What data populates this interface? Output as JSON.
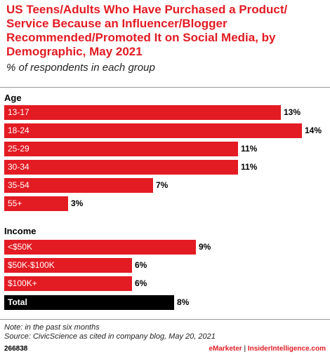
{
  "title": "US Teens/Adults Who Have Purchased a Product/ Service Because an Influencer/Blogger Recommended/Promoted It on Social Media, by Demographic, May 2021",
  "subtitle": "% of respondents in each group",
  "sections": {
    "age": "Age",
    "income": "Income"
  },
  "colors": {
    "bar": "#e31b23",
    "total_bar": "#000000",
    "title": "#e31b23"
  },
  "chart_data": {
    "type": "bar",
    "orientation": "horizontal",
    "unit": "%",
    "xlim": [
      0,
      14
    ],
    "groups": [
      {
        "name": "Age",
        "categories": [
          "13-17",
          "18-24",
          "25-29",
          "30-34",
          "35-54",
          "55+"
        ],
        "values": [
          13,
          14,
          11,
          11,
          7,
          3
        ],
        "labels": [
          "13%",
          "14%",
          "11%",
          "11%",
          "7%",
          "3%"
        ]
      },
      {
        "name": "Income",
        "categories": [
          "<$50K",
          "$50K-$100K",
          "$100K+"
        ],
        "values": [
          9,
          6,
          6
        ],
        "labels": [
          "9%",
          "6%",
          "6%"
        ]
      }
    ],
    "total": {
      "category": "Total",
      "value": 8,
      "label": "8%"
    }
  },
  "notes": {
    "note": "Note: in the past six months",
    "source": "Source: CivicScience as cited in company blog, May 20, 2021"
  },
  "footer": {
    "id": "266838",
    "brand_emarketer": "eMarketer",
    "separator": " | ",
    "brand_ii": "InsiderIntelligence.com"
  }
}
